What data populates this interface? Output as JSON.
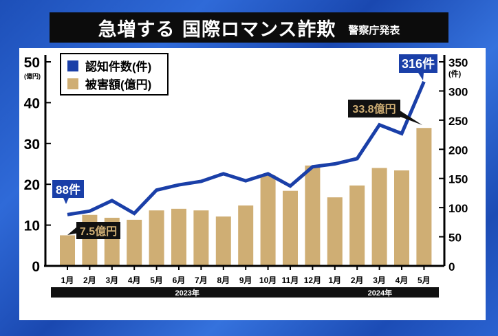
{
  "title": "急増する 国際ロマンス詐欺",
  "source": "警察庁発表",
  "chart_data": {
    "type": "bar+line",
    "categories": [
      "1月",
      "2月",
      "3月",
      "4月",
      "5月",
      "6月",
      "7月",
      "8月",
      "9月",
      "10月",
      "11月",
      "12月",
      "1月",
      "2月",
      "3月",
      "4月",
      "5月"
    ],
    "year_groups": [
      {
        "label": "2023年",
        "count": 12
      },
      {
        "label": "2024年",
        "count": 5
      }
    ],
    "series": [
      {
        "name": "認知件数(件)",
        "type": "line",
        "axis": "right",
        "color": "#1a3fa8",
        "values": [
          88,
          94,
          112,
          90,
          130,
          139,
          145,
          158,
          146,
          158,
          137,
          170,
          175,
          184,
          242,
          227,
          316
        ]
      },
      {
        "name": "被害額(億円)",
        "type": "bar",
        "axis": "left",
        "color": "#cfae74",
        "values": [
          7.5,
          12.5,
          11.8,
          11.3,
          13.6,
          14,
          13.6,
          12.1,
          14.8,
          22.2,
          18.4,
          24.6,
          16.8,
          19.7,
          24,
          23.4,
          33.8
        ]
      }
    ],
    "left_axis": {
      "unit": "(億円)",
      "ylim": [
        0,
        50
      ],
      "ticks": [
        "0",
        "10",
        "20",
        "30",
        "40",
        "50"
      ]
    },
    "right_axis": {
      "unit": "(件)",
      "ylim": [
        0,
        350
      ],
      "ticks": [
        "0",
        "50",
        "100",
        "150",
        "200",
        "250",
        "300",
        "350"
      ]
    },
    "annotations": [
      {
        "label": "88件",
        "series": 0,
        "index": 0
      },
      {
        "label": "7.5億円",
        "series": 1,
        "index": 0
      },
      {
        "label": "33.8億円",
        "series": 1,
        "index": 16
      },
      {
        "label": "316件",
        "series": 0,
        "index": 16
      }
    ],
    "legend": "top-left",
    "grid": false
  }
}
